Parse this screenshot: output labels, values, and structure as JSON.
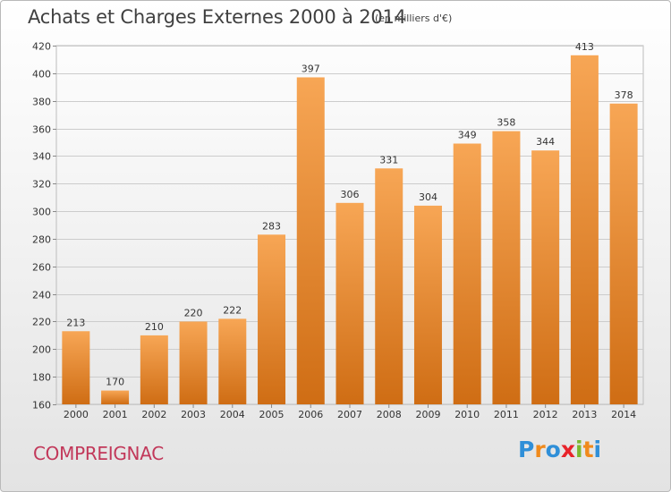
{
  "header": {
    "title": "Achats et Charges Externes 2000 à 2014",
    "unit": "(en milliers d'€)"
  },
  "footer": {
    "commune": "COMPREIGNAC",
    "brand": [
      "P",
      "r",
      "o",
      "x",
      "i",
      "t",
      "i"
    ],
    "brand_colors": [
      "#2f8fd8",
      "#f08a1c",
      "#2f8fd8",
      "#e8232a",
      "#7cb82f",
      "#f08a1c",
      "#2f8fd8"
    ]
  },
  "colors": {
    "bar_light": "#f7a655",
    "bar_dark": "#cf6d14",
    "grid": "#cccccc",
    "commune_text": "#c2385a"
  },
  "chart_data": {
    "type": "bar",
    "categories": [
      "2000",
      "2001",
      "2002",
      "2003",
      "2004",
      "2005",
      "2006",
      "2007",
      "2008",
      "2009",
      "2010",
      "2011",
      "2012",
      "2013",
      "2014"
    ],
    "values": [
      213,
      170,
      210,
      220,
      222,
      283,
      397,
      306,
      331,
      304,
      349,
      358,
      344,
      413,
      378
    ],
    "yticks": [
      160,
      180,
      200,
      220,
      240,
      260,
      280,
      300,
      320,
      340,
      360,
      380,
      400,
      420
    ],
    "ylim": [
      160,
      420
    ],
    "grid": true,
    "legend": "none"
  }
}
